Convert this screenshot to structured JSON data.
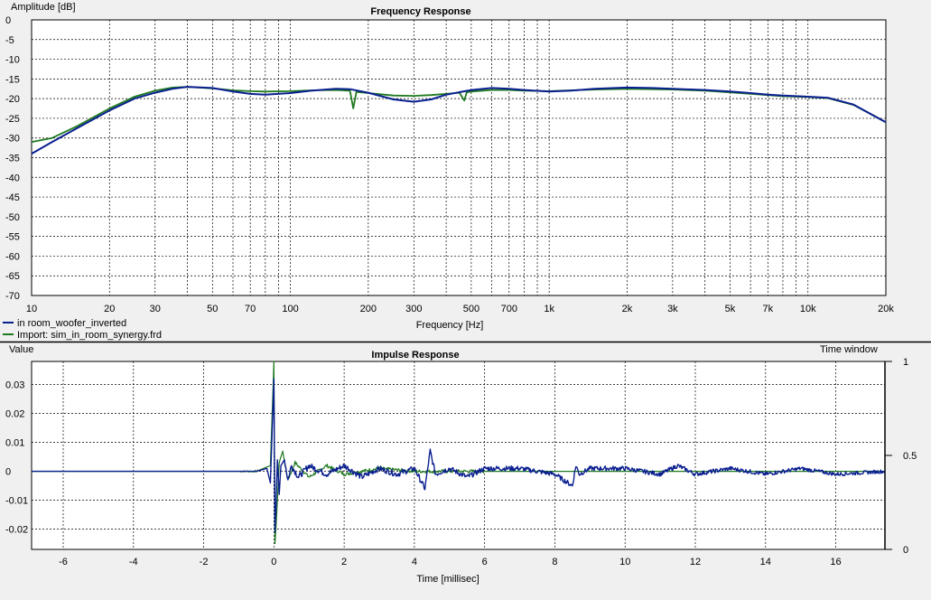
{
  "colors": {
    "background": "#f0f0f0",
    "plot_background": "#ffffff",
    "grid": "#000000",
    "series_blue": "#0a1f8f",
    "series_green": "#1e7a1e"
  },
  "chart_data": [
    {
      "type": "line",
      "title": "Frequency Response",
      "xlabel": "Frequency [Hz]",
      "ylabel": "Amplitude [dB]",
      "x_scale": "log",
      "xlim": [
        10,
        20000
      ],
      "ylim": [
        -70,
        0
      ],
      "grid": true,
      "legend_placement": "bottom-left",
      "x_ticks": [
        {
          "v": 10,
          "label": "10"
        },
        {
          "v": 20,
          "label": "20"
        },
        {
          "v": 30,
          "label": "30"
        },
        {
          "v": 50,
          "label": "50"
        },
        {
          "v": 70,
          "label": "70"
        },
        {
          "v": 100,
          "label": "100"
        },
        {
          "v": 200,
          "label": "200"
        },
        {
          "v": 300,
          "label": "300"
        },
        {
          "v": 500,
          "label": "500"
        },
        {
          "v": 700,
          "label": "700"
        },
        {
          "v": 1000,
          "label": "1k"
        },
        {
          "v": 2000,
          "label": "2k"
        },
        {
          "v": 3000,
          "label": "3k"
        },
        {
          "v": 5000,
          "label": "5k"
        },
        {
          "v": 7000,
          "label": "7k"
        },
        {
          "v": 10000,
          "label": "10k"
        },
        {
          "v": 20000,
          "label": "20k"
        }
      ],
      "y_ticks": [
        "0",
        "-5",
        "-10",
        "-15",
        "-20",
        "-25",
        "-30",
        "-35",
        "-40",
        "-45",
        "-50",
        "-55",
        "-60",
        "-65",
        "-70"
      ],
      "series": [
        {
          "name": "in room_woofer_inverted",
          "color": "#0a1f8f",
          "x": [
            10,
            12,
            15,
            20,
            25,
            30,
            35,
            40,
            50,
            60,
            70,
            80,
            100,
            120,
            150,
            170,
            200,
            250,
            300,
            350,
            400,
            500,
            600,
            700,
            800,
            1000,
            1200,
            1500,
            2000,
            2500,
            3000,
            4000,
            5000,
            6000,
            7000,
            8000,
            10000,
            12000,
            15000,
            20000
          ],
          "y": [
            -34,
            -31,
            -27.5,
            -23,
            -20,
            -18.5,
            -17.5,
            -17,
            -17.3,
            -18.2,
            -18.8,
            -19,
            -18.6,
            -18,
            -17.5,
            -17.6,
            -18.5,
            -20.2,
            -20.8,
            -20.2,
            -19,
            -17.8,
            -17.3,
            -17.5,
            -17.8,
            -18.2,
            -18,
            -17.5,
            -17.2,
            -17.3,
            -17.5,
            -17.8,
            -18.2,
            -18.6,
            -19,
            -19.2,
            -19.5,
            -19.8,
            -21.5,
            -26
          ]
        },
        {
          "name": "Import: sim_in_room_synergy.frd",
          "color": "#1e7a1e",
          "x": [
            10,
            12,
            15,
            20,
            25,
            30,
            35,
            40,
            50,
            60,
            70,
            80,
            100,
            120,
            150,
            170,
            175,
            180,
            200,
            250,
            300,
            350,
            400,
            450,
            470,
            480,
            500,
            600,
            700,
            800,
            1000,
            1200,
            1500,
            2000,
            2500,
            3000,
            4000,
            5000,
            6000,
            7000,
            8000,
            10000,
            12000,
            15000,
            20000
          ],
          "y": [
            -31,
            -30,
            -27,
            -22.5,
            -19.5,
            -18,
            -17.2,
            -17,
            -17.4,
            -17.9,
            -18.1,
            -18.2,
            -18.1,
            -17.9,
            -17.8,
            -18,
            -22.5,
            -18.3,
            -18.6,
            -19.2,
            -19.3,
            -19.1,
            -18.8,
            -18.5,
            -20.5,
            -18.4,
            -18.2,
            -17.8,
            -17.8,
            -18,
            -18.1,
            -17.9,
            -17.7,
            -17.5,
            -17.6,
            -17.7,
            -18,
            -18.4,
            -18.8,
            -19.1,
            -19.4,
            -19.6,
            -19.9,
            -21.6,
            -26
          ]
        }
      ]
    },
    {
      "type": "line",
      "title": "Impulse Response",
      "xlabel": "Time [millisec]",
      "ylabel": "Value",
      "xlim": [
        -6.9,
        17.4
      ],
      "ylim": [
        -0.027,
        0.038
      ],
      "grid": true,
      "x_ticks": [
        "-6",
        "-4",
        "-2",
        "0",
        "2",
        "4",
        "6",
        "8",
        "10",
        "12",
        "14",
        "16"
      ],
      "y_ticks": [
        "0.03",
        "0.02",
        "0.01",
        "0",
        "-0.01",
        "-0.02"
      ],
      "right_axis": {
        "label": "Time window",
        "ylim": [
          0,
          1
        ],
        "ticks": [
          "1",
          "0.5",
          "0"
        ]
      },
      "series": [
        {
          "name": "in room_woofer_inverted",
          "color": "#0a1f8f",
          "x": [
            -6.9,
            -0.5,
            -0.2,
            -0.1,
            0,
            0.03,
            0.06,
            0.1,
            0.15,
            0.2,
            0.3,
            0.4,
            0.5,
            0.7,
            1.0,
            1.5,
            2.0,
            2.5,
            3.0,
            3.5,
            4.0,
            4.3,
            4.45,
            4.6,
            5.0,
            5.5,
            6.0,
            7.0,
            8.0,
            8.5,
            8.6,
            8.7,
            9.0,
            10.0,
            11.0,
            11.5,
            12.0,
            13.0,
            14.0,
            15.0,
            16.0,
            17.4
          ],
          "y": [
            0,
            0,
            0.001,
            -0.004,
            0.032,
            -0.021,
            -0.012,
            0.004,
            -0.008,
            0.002,
            0.004,
            -0.003,
            0.002,
            -0.002,
            0.002,
            -0.001,
            0.002,
            -0.002,
            0.001,
            -0.001,
            0.001,
            -0.006,
            0.007,
            -0.001,
            0.001,
            -0.002,
            0.001,
            0.001,
            -0.001,
            -0.005,
            0.002,
            -0.001,
            0.001,
            0.001,
            -0.001,
            0.002,
            -0.001,
            0.001,
            -0.001,
            0.001,
            -0.001,
            0
          ]
        },
        {
          "name": "Import: sim_in_room_synergy.frd",
          "color": "#1e7a1e",
          "x": [
            -6.9,
            -0.5,
            -0.3,
            -0.1,
            0,
            0.03,
            0.08,
            0.15,
            0.25,
            0.4,
            0.6,
            1.0,
            1.5,
            2.0,
            3.0,
            4.0,
            6.0,
            10.0,
            17.4
          ],
          "y": [
            0,
            0,
            0.001,
            0.002,
            0.038,
            -0.025,
            -0.015,
            0.003,
            0.007,
            -0.003,
            0.003,
            -0.002,
            0.002,
            -0.001,
            0.001,
            0,
            0,
            0,
            0
          ]
        }
      ]
    }
  ],
  "legend": [
    {
      "label": "in room_woofer_inverted",
      "color": "#0a1f8f"
    },
    {
      "label": "Import: sim_in_room_synergy.frd",
      "color": "#1e7a1e"
    }
  ]
}
